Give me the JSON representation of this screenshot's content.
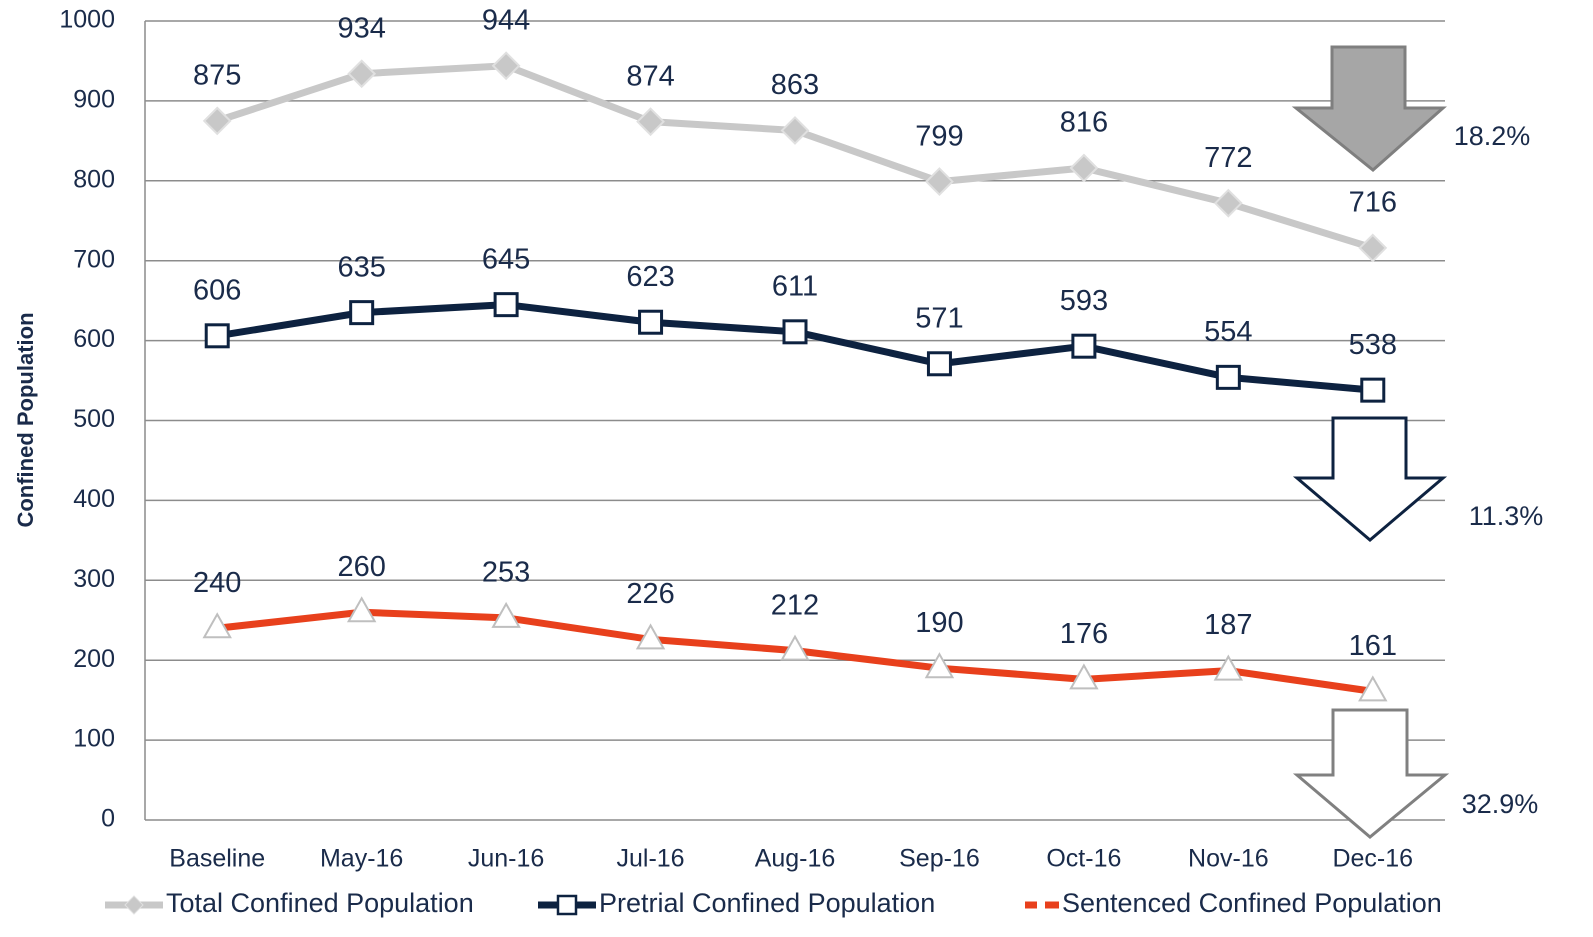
{
  "chart_data": {
    "type": "line",
    "y_label": "Confined Population",
    "categories": [
      "Baseline",
      "May-16",
      "Jun-16",
      "Jul-16",
      "Aug-16",
      "Sep-16",
      "Oct-16",
      "Nov-16",
      "Dec-16"
    ],
    "series": [
      {
        "name": "Total Confined Population",
        "color": "#c8c8c8",
        "marker": "diamond",
        "values": [
          875,
          934,
          944,
          874,
          863,
          799,
          816,
          772,
          716
        ]
      },
      {
        "name": "Pretrial Confined Population",
        "color": "#0d2240",
        "marker": "square",
        "values": [
          606,
          635,
          645,
          623,
          611,
          571,
          593,
          554,
          538
        ]
      },
      {
        "name": "Sentenced Confined Population",
        "color": "#e8401c",
        "marker": "triangle",
        "values": [
          240,
          260,
          253,
          226,
          212,
          190,
          176,
          187,
          161
        ]
      }
    ],
    "ylim": [
      0,
      1000
    ],
    "yticks": [
      0,
      100,
      200,
      300,
      400,
      500,
      600,
      700,
      800,
      900,
      1000
    ],
    "grid": true,
    "legend": "bottom",
    "annotations": [
      "18.2%",
      "11.3%",
      "32.9%"
    ]
  }
}
